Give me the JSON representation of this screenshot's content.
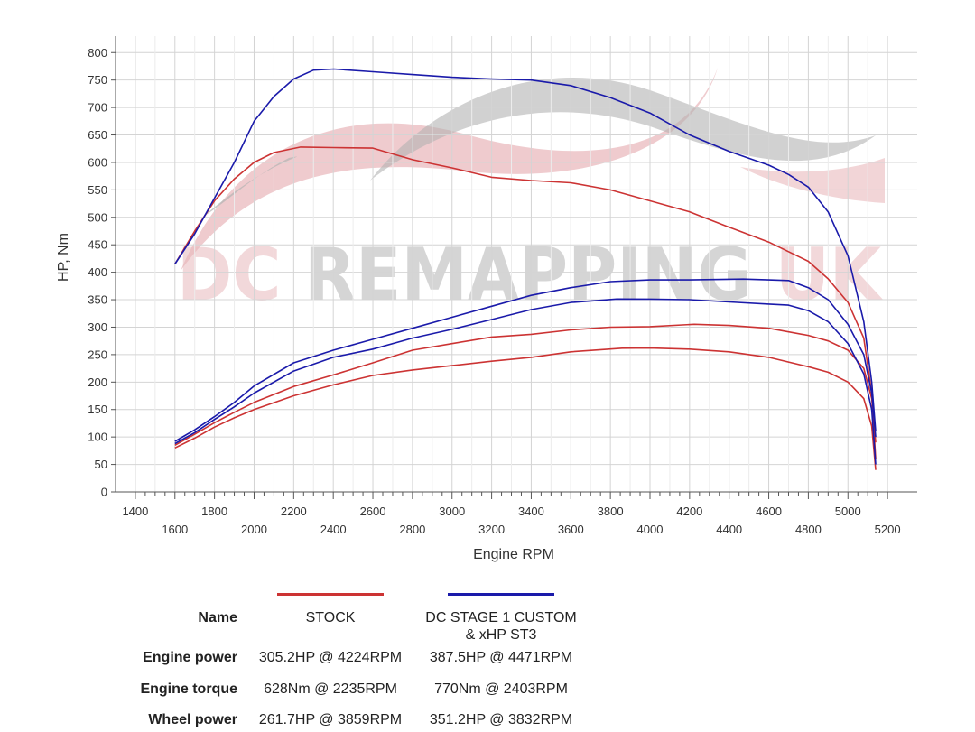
{
  "colors": {
    "stock": "#cc3333",
    "stage1": "#1a1aaa",
    "grid": "#d4d4d4",
    "watermark_red": "#e9b9bd",
    "watermark_grey": "#b3b3b3"
  },
  "watermark": "DC REMAPPING UK",
  "chart_data": {
    "type": "line",
    "xlabel": "Engine RPM",
    "ylabel": "HP, Nm",
    "xlim": [
      1300,
      5350
    ],
    "ylim": [
      0,
      830
    ],
    "x_ticks_upper": [
      1400,
      1800,
      2200,
      2600,
      3000,
      3400,
      3800,
      4200,
      4600,
      5000
    ],
    "x_ticks_lower": [
      1600,
      2000,
      2400,
      2800,
      3200,
      3600,
      4000,
      4400,
      4800,
      5200
    ],
    "y_ticks": [
      0,
      50,
      100,
      150,
      200,
      250,
      300,
      350,
      400,
      450,
      500,
      550,
      600,
      650,
      700,
      750,
      800
    ],
    "grid": true,
    "series": [
      {
        "name": "STOCK",
        "kind": "torque",
        "color_key": "stock",
        "points": [
          [
            1600,
            415
          ],
          [
            1700,
            475
          ],
          [
            1800,
            530
          ],
          [
            1900,
            570
          ],
          [
            2000,
            600
          ],
          [
            2100,
            618
          ],
          [
            2235,
            628
          ],
          [
            2400,
            627
          ],
          [
            2600,
            626
          ],
          [
            2800,
            605
          ],
          [
            3000,
            590
          ],
          [
            3200,
            573
          ],
          [
            3400,
            567
          ],
          [
            3600,
            563
          ],
          [
            3800,
            550
          ],
          [
            4000,
            530
          ],
          [
            4200,
            510
          ],
          [
            4400,
            482
          ],
          [
            4600,
            455
          ],
          [
            4800,
            420
          ],
          [
            4900,
            388
          ],
          [
            5000,
            345
          ],
          [
            5080,
            280
          ],
          [
            5120,
            180
          ],
          [
            5140,
            60
          ]
        ]
      },
      {
        "name": "STOCK",
        "kind": "power",
        "color_key": "stock",
        "points": [
          [
            1600,
            85
          ],
          [
            1700,
            105
          ],
          [
            1800,
            126
          ],
          [
            1900,
            145
          ],
          [
            2000,
            163
          ],
          [
            2200,
            192
          ],
          [
            2400,
            213
          ],
          [
            2600,
            235
          ],
          [
            2800,
            258
          ],
          [
            3000,
            270
          ],
          [
            3200,
            282
          ],
          [
            3400,
            287
          ],
          [
            3600,
            295
          ],
          [
            3800,
            300
          ],
          [
            4000,
            301
          ],
          [
            4224,
            305.2
          ],
          [
            4400,
            303
          ],
          [
            4600,
            298
          ],
          [
            4800,
            285
          ],
          [
            4900,
            275
          ],
          [
            5000,
            258
          ],
          [
            5080,
            225
          ],
          [
            5120,
            170
          ],
          [
            5140,
            90
          ]
        ]
      },
      {
        "name": "STOCK",
        "kind": "wheel",
        "color_key": "stock",
        "points": [
          [
            1600,
            80
          ],
          [
            1700,
            98
          ],
          [
            1800,
            118
          ],
          [
            1900,
            135
          ],
          [
            2000,
            150
          ],
          [
            2200,
            175
          ],
          [
            2400,
            195
          ],
          [
            2600,
            212
          ],
          [
            2800,
            222
          ],
          [
            3000,
            230
          ],
          [
            3200,
            238
          ],
          [
            3400,
            245
          ],
          [
            3600,
            255
          ],
          [
            3859,
            261.7
          ],
          [
            4000,
            262
          ],
          [
            4200,
            260
          ],
          [
            4400,
            255
          ],
          [
            4600,
            245
          ],
          [
            4800,
            228
          ],
          [
            4900,
            218
          ],
          [
            5000,
            200
          ],
          [
            5080,
            170
          ],
          [
            5120,
            120
          ],
          [
            5140,
            40
          ]
        ]
      },
      {
        "name": "DC STAGE 1 CUSTOM & xHP ST3",
        "kind": "torque",
        "color_key": "stage1",
        "points": [
          [
            1600,
            415
          ],
          [
            1700,
            470
          ],
          [
            1800,
            535
          ],
          [
            1900,
            600
          ],
          [
            2000,
            675
          ],
          [
            2100,
            720
          ],
          [
            2200,
            752
          ],
          [
            2300,
            768
          ],
          [
            2403,
            770
          ],
          [
            2600,
            765
          ],
          [
            2800,
            760
          ],
          [
            3000,
            755
          ],
          [
            3200,
            752
          ],
          [
            3400,
            750
          ],
          [
            3600,
            740
          ],
          [
            3800,
            718
          ],
          [
            4000,
            690
          ],
          [
            4200,
            650
          ],
          [
            4400,
            620
          ],
          [
            4600,
            595
          ],
          [
            4700,
            578
          ],
          [
            4800,
            555
          ],
          [
            4900,
            510
          ],
          [
            5000,
            430
          ],
          [
            5080,
            310
          ],
          [
            5120,
            200
          ],
          [
            5140,
            110
          ]
        ]
      },
      {
        "name": "DC STAGE 1 CUSTOM & xHP ST3",
        "kind": "power",
        "color_key": "stage1",
        "points": [
          [
            1600,
            92
          ],
          [
            1700,
            113
          ],
          [
            1800,
            137
          ],
          [
            1900,
            163
          ],
          [
            2000,
            193
          ],
          [
            2200,
            235
          ],
          [
            2400,
            258
          ],
          [
            2600,
            278
          ],
          [
            2800,
            298
          ],
          [
            3000,
            318
          ],
          [
            3200,
            338
          ],
          [
            3400,
            358
          ],
          [
            3600,
            372
          ],
          [
            3800,
            383
          ],
          [
            4000,
            386
          ],
          [
            4200,
            386
          ],
          [
            4471,
            387.5
          ],
          [
            4600,
            386
          ],
          [
            4700,
            385
          ],
          [
            4800,
            372
          ],
          [
            4900,
            350
          ],
          [
            5000,
            305
          ],
          [
            5080,
            250
          ],
          [
            5120,
            180
          ],
          [
            5140,
            100
          ]
        ]
      },
      {
        "name": "DC STAGE 1 CUSTOM & xHP ST3",
        "kind": "wheel",
        "color_key": "stage1",
        "points": [
          [
            1600,
            88
          ],
          [
            1700,
            108
          ],
          [
            1800,
            132
          ],
          [
            1900,
            155
          ],
          [
            2000,
            180
          ],
          [
            2200,
            220
          ],
          [
            2400,
            245
          ],
          [
            2600,
            260
          ],
          [
            2800,
            280
          ],
          [
            3000,
            296
          ],
          [
            3200,
            314
          ],
          [
            3400,
            332
          ],
          [
            3600,
            345
          ],
          [
            3832,
            351.2
          ],
          [
            4000,
            351
          ],
          [
            4200,
            350
          ],
          [
            4400,
            346
          ],
          [
            4600,
            342
          ],
          [
            4700,
            340
          ],
          [
            4800,
            330
          ],
          [
            4900,
            310
          ],
          [
            5000,
            270
          ],
          [
            5080,
            215
          ],
          [
            5120,
            150
          ],
          [
            5140,
            50
          ]
        ]
      }
    ]
  },
  "summary": {
    "name_label": "Name",
    "stock_name": "STOCK",
    "stage1_name_line1": "DC STAGE 1 CUSTOM",
    "stage1_name_line2": "& xHP ST3",
    "rows": [
      {
        "label": "Engine power",
        "stock": "305.2HP @  4224RPM",
        "stage1": "387.5HP @  4471RPM"
      },
      {
        "label": "Engine torque",
        "stock": "628Nm @ 2235RPM",
        "stage1": "770Nm @ 2403RPM"
      },
      {
        "label": "Wheel power",
        "stock": "261.7HP @  3859RPM",
        "stage1": "351.2HP @  3832RPM"
      }
    ]
  }
}
